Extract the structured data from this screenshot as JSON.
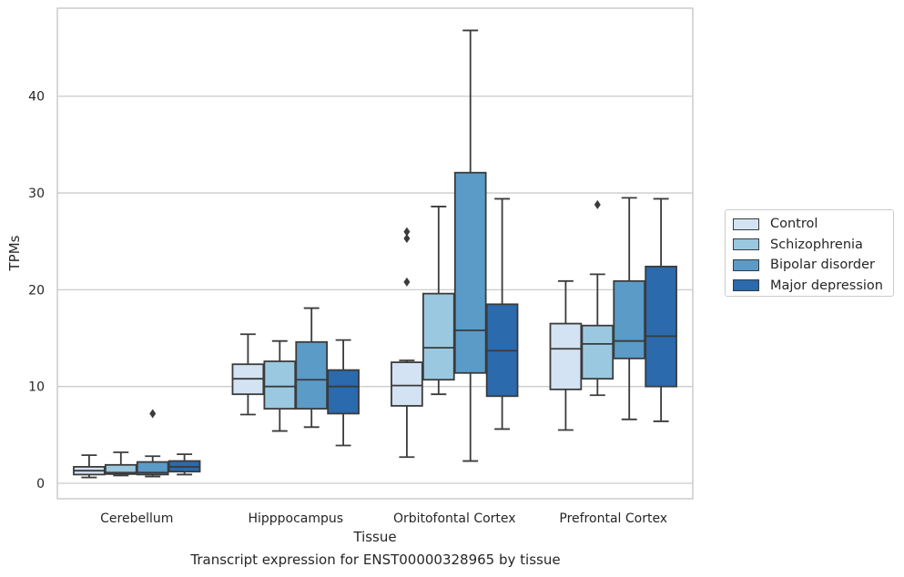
{
  "chart_data": {
    "type": "box",
    "caption": "Transcript expression for ENST00000328965 by tissue",
    "xlabel": "Tissue",
    "ylabel": "TPMs",
    "ylim": [
      -1.6,
      49.1
    ],
    "yticks": [
      0,
      10,
      20,
      30,
      40
    ],
    "grid": "horizontal",
    "legend_position": "right",
    "categories": [
      "Cerebellum",
      "Hipppocampus",
      "Orbitofontal Cortex",
      "Prefrontal Cortex"
    ],
    "series": [
      {
        "name": "Control",
        "color": "#d3e3f3",
        "boxes": [
          {
            "min": 0.6,
            "q1": 0.9,
            "median": 1.3,
            "q3": 1.7,
            "max": 2.9,
            "outliers": []
          },
          {
            "min": 7.1,
            "q1": 9.2,
            "median": 10.8,
            "q3": 12.3,
            "max": 15.4,
            "outliers": []
          },
          {
            "min": 2.7,
            "q1": 8.0,
            "median": 10.1,
            "q3": 12.5,
            "max": 12.7,
            "outliers": [
              20.8,
              25.3,
              26.0
            ]
          },
          {
            "min": 5.5,
            "q1": 9.7,
            "median": 13.9,
            "q3": 16.5,
            "max": 20.9,
            "outliers": []
          }
        ]
      },
      {
        "name": "Schizophrenia",
        "color": "#9ac8e0",
        "boxes": [
          {
            "min": 0.8,
            "q1": 0.95,
            "median": 1.1,
            "q3": 1.9,
            "max": 3.2,
            "outliers": []
          },
          {
            "min": 5.4,
            "q1": 7.7,
            "median": 10.0,
            "q3": 12.6,
            "max": 14.7,
            "outliers": []
          },
          {
            "min": 9.2,
            "q1": 10.7,
            "median": 14.0,
            "q3": 19.6,
            "max": 28.6,
            "outliers": []
          },
          {
            "min": 9.1,
            "q1": 10.8,
            "median": 14.4,
            "q3": 16.3,
            "max": 21.6,
            "outliers": [
              28.8
            ]
          }
        ]
      },
      {
        "name": "Bipolar disorder",
        "color": "#5a9bc8",
        "boxes": [
          {
            "min": 0.7,
            "q1": 0.9,
            "median": 1.1,
            "q3": 2.2,
            "max": 2.8,
            "outliers": [
              7.2
            ]
          },
          {
            "min": 5.8,
            "q1": 7.7,
            "median": 10.7,
            "q3": 14.6,
            "max": 18.1,
            "outliers": []
          },
          {
            "min": 2.3,
            "q1": 11.4,
            "median": 15.8,
            "q3": 32.1,
            "max": 46.8,
            "outliers": []
          },
          {
            "min": 6.6,
            "q1": 12.9,
            "median": 14.7,
            "q3": 20.9,
            "max": 29.5,
            "outliers": []
          }
        ]
      },
      {
        "name": "Major depression",
        "color": "#2a6aad",
        "boxes": [
          {
            "min": 0.9,
            "q1": 1.2,
            "median": 1.7,
            "q3": 2.3,
            "max": 3.0,
            "outliers": []
          },
          {
            "min": 3.9,
            "q1": 7.2,
            "median": 10.0,
            "q3": 11.7,
            "max": 14.8,
            "outliers": []
          },
          {
            "min": 5.6,
            "q1": 9.0,
            "median": 13.7,
            "q3": 18.5,
            "max": 29.4,
            "outliers": []
          },
          {
            "min": 6.4,
            "q1": 10.0,
            "median": 15.2,
            "q3": 22.4,
            "max": 29.4,
            "outliers": []
          }
        ]
      }
    ]
  }
}
